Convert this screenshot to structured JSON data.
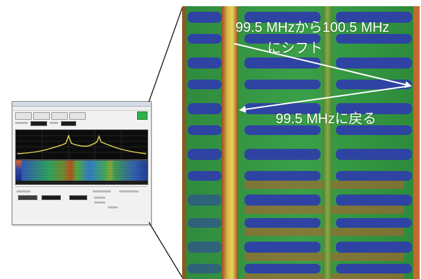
{
  "annotations": {
    "shift_line1": "99.5 MHzから100.5 MHz",
    "shift_line2": "にシフト",
    "return_label": "99.5 MHzに戻る"
  },
  "colors": {
    "waterfall_background": "#2a7c3c",
    "waterfall_low": "#2e3fa8",
    "waterfall_high": "#c7552a",
    "carrier_band": "#b9c04a",
    "spectrum_trace": "#e8d85a",
    "annotation_text": "#ffffff",
    "arrow": "#ffffff"
  },
  "thumbnail": {
    "icons": [
      "spectrum-trace",
      "waterfall-display"
    ]
  }
}
